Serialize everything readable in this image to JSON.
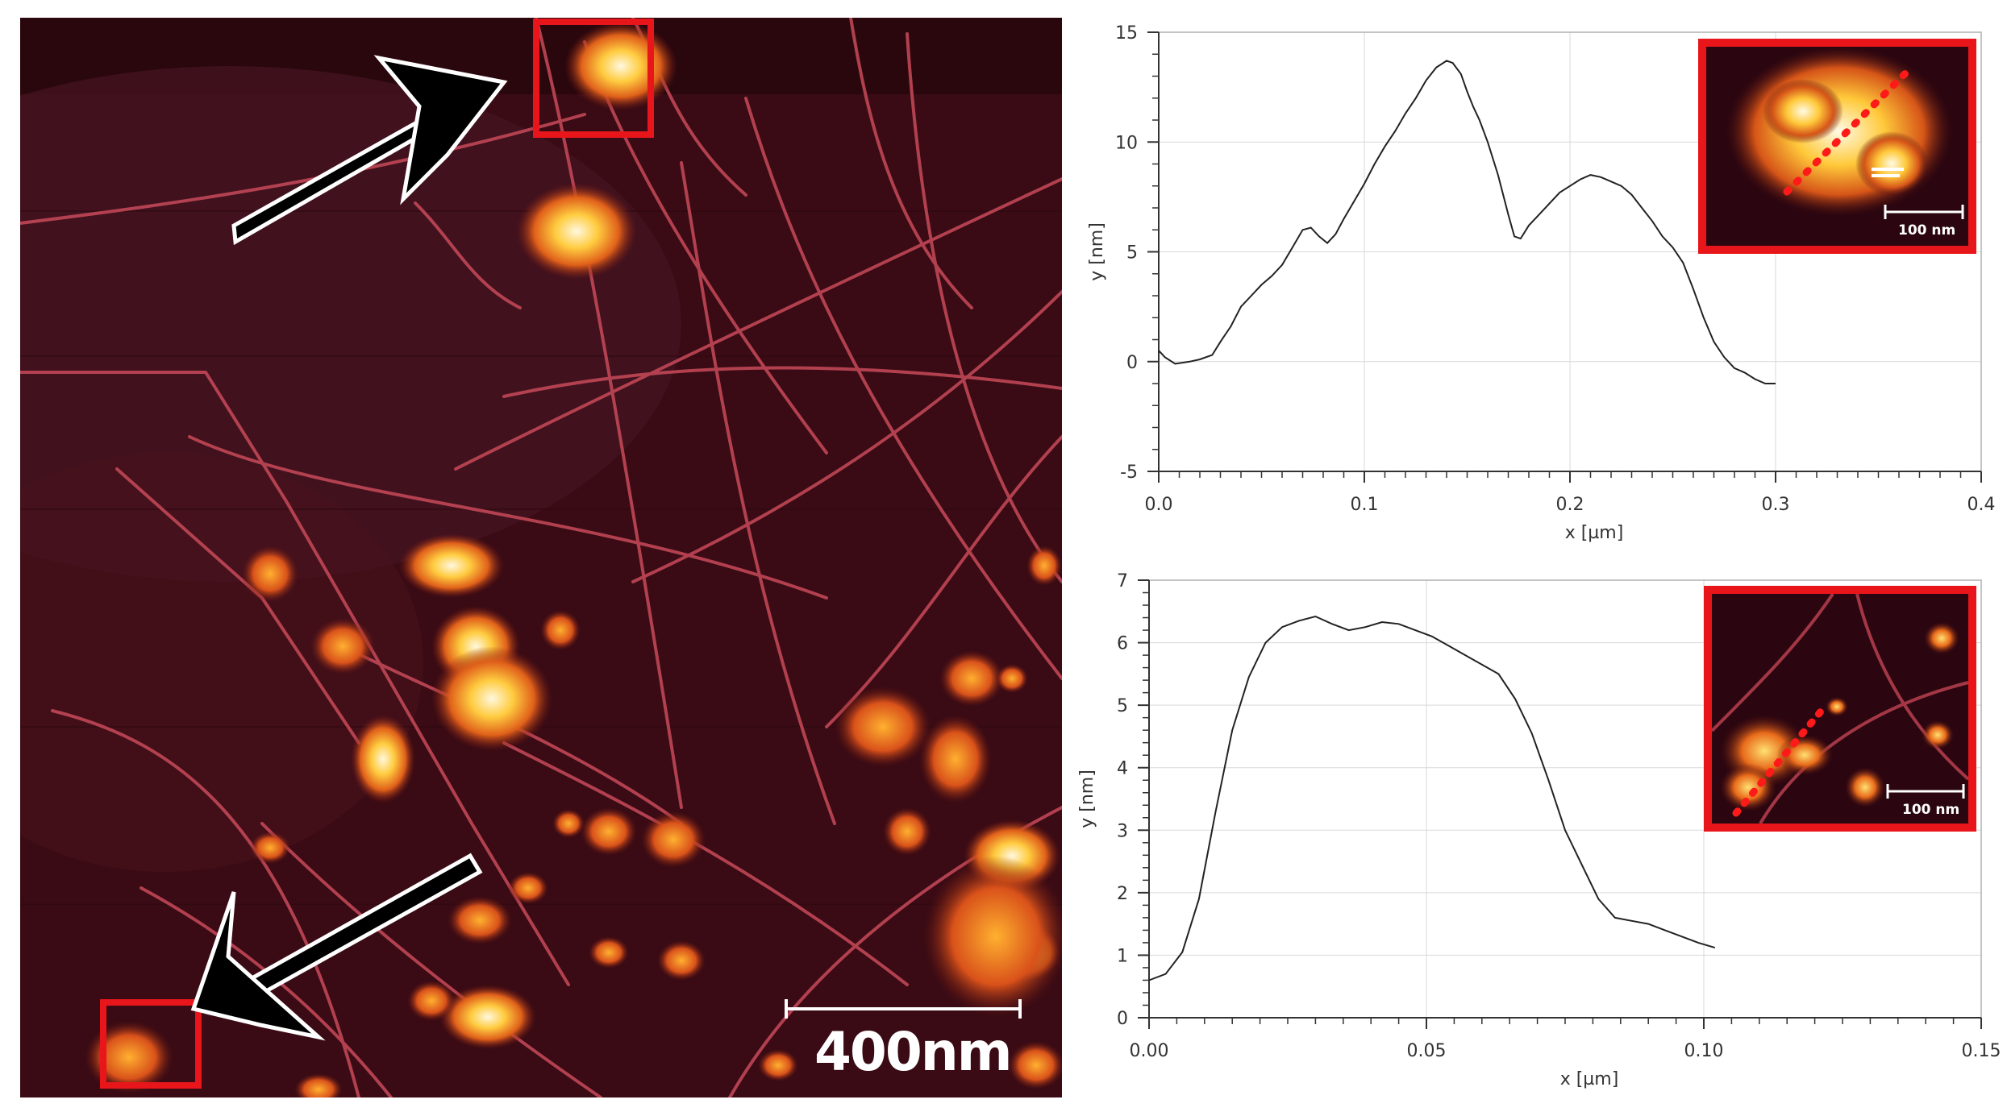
{
  "afm_image": {
    "scale_bar_label": "400nm"
  },
  "chart_data": [
    {
      "type": "line",
      "xlabel": "x [µm]",
      "ylabel": "y [nm]",
      "xlim": [
        0.0,
        0.4
      ],
      "ylim": [
        -5,
        15
      ],
      "xticks": [
        "0.0",
        "0.1",
        "0.2",
        "0.3",
        "0.4"
      ],
      "yticks": [
        "-5",
        "0",
        "5",
        "10",
        "15"
      ],
      "grid": true,
      "inset_scale_label": "100 nm",
      "series": [
        {
          "x": [
            0.0,
            0.003,
            0.008,
            0.015,
            0.02,
            0.026,
            0.03,
            0.035,
            0.04,
            0.045,
            0.05,
            0.055,
            0.06,
            0.065,
            0.07,
            0.074,
            0.078,
            0.082,
            0.086,
            0.09,
            0.095,
            0.1,
            0.105,
            0.11,
            0.115,
            0.12,
            0.125,
            0.13,
            0.135,
            0.14,
            0.143,
            0.147,
            0.15,
            0.153,
            0.156,
            0.16,
            0.165,
            0.17,
            0.173,
            0.176,
            0.18,
            0.185,
            0.19,
            0.195,
            0.2,
            0.205,
            0.21,
            0.215,
            0.22,
            0.225,
            0.23,
            0.235,
            0.24,
            0.245,
            0.25,
            0.255,
            0.26,
            0.265,
            0.27,
            0.275,
            0.28,
            0.285,
            0.29,
            0.295,
            0.3
          ],
          "y": [
            0.5,
            0.2,
            -0.1,
            0.0,
            0.1,
            0.3,
            0.9,
            1.6,
            2.5,
            3.0,
            3.5,
            3.9,
            4.4,
            5.2,
            6.0,
            6.1,
            5.7,
            5.4,
            5.8,
            6.5,
            7.3,
            8.1,
            9.0,
            9.8,
            10.5,
            11.3,
            12.0,
            12.8,
            13.4,
            13.7,
            13.6,
            13.1,
            12.3,
            11.6,
            11.0,
            10.0,
            8.5,
            6.7,
            5.7,
            5.6,
            6.2,
            6.7,
            7.2,
            7.7,
            8.0,
            8.3,
            8.5,
            8.4,
            8.2,
            8.0,
            7.6,
            7.0,
            6.4,
            5.7,
            5.2,
            4.5,
            3.3,
            2.0,
            0.9,
            0.2,
            -0.3,
            -0.5,
            -0.8,
            -1.0,
            -1.0
          ]
        }
      ]
    },
    {
      "type": "line",
      "xlabel": "x [µm]",
      "ylabel": "y [nm]",
      "xlim": [
        0.0,
        0.15
      ],
      "ylim": [
        0,
        7
      ],
      "xticks": [
        "0.00",
        "0.05",
        "0.10",
        "0.15"
      ],
      "yticks": [
        "0",
        "1",
        "2",
        "3",
        "4",
        "5",
        "6",
        "7"
      ],
      "grid": true,
      "inset_scale_label": "100 nm",
      "series": [
        {
          "x": [
            0.0,
            0.003,
            0.006,
            0.009,
            0.012,
            0.015,
            0.018,
            0.021,
            0.024,
            0.027,
            0.03,
            0.033,
            0.036,
            0.039,
            0.042,
            0.045,
            0.048,
            0.051,
            0.054,
            0.057,
            0.06,
            0.063,
            0.066,
            0.069,
            0.072,
            0.075,
            0.078,
            0.081,
            0.084,
            0.087,
            0.09,
            0.093,
            0.096,
            0.099,
            0.102
          ],
          "y": [
            0.6,
            0.7,
            1.05,
            1.9,
            3.3,
            4.6,
            5.45,
            6.0,
            6.25,
            6.35,
            6.42,
            6.3,
            6.2,
            6.25,
            6.33,
            6.3,
            6.2,
            6.1,
            5.95,
            5.8,
            5.65,
            5.5,
            5.1,
            4.55,
            3.8,
            3.0,
            2.45,
            1.9,
            1.6,
            1.55,
            1.5,
            1.4,
            1.3,
            1.2,
            1.12
          ]
        }
      ]
    }
  ]
}
